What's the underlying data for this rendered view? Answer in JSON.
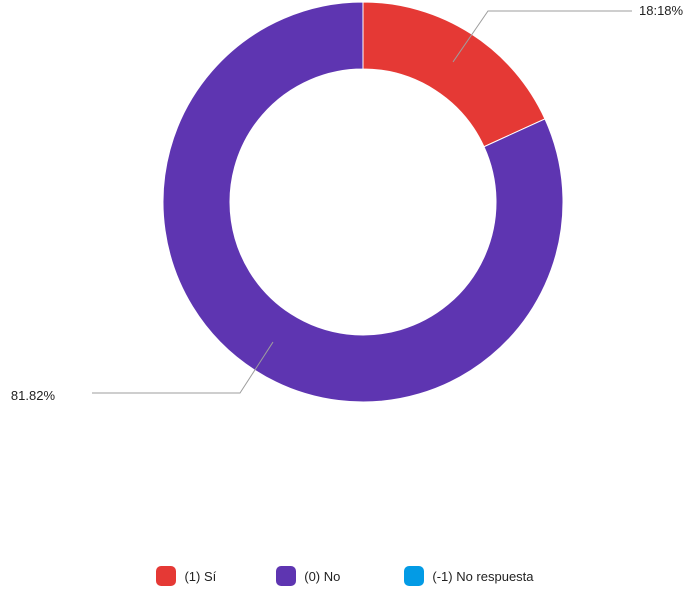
{
  "chart_data": {
    "type": "pie",
    "donut": true,
    "slices": [
      {
        "label": "(1) Sí",
        "value": 18.18,
        "display": "18:18%",
        "color": "#e53935"
      },
      {
        "label": "(0) No",
        "value": 81.82,
        "display": "81.82%",
        "color": "#5e35b1"
      },
      {
        "label": "(-1) No respuesta",
        "value": 0,
        "display": "",
        "color": "#039be5"
      }
    ],
    "legend_position": "bottom",
    "title": ""
  }
}
